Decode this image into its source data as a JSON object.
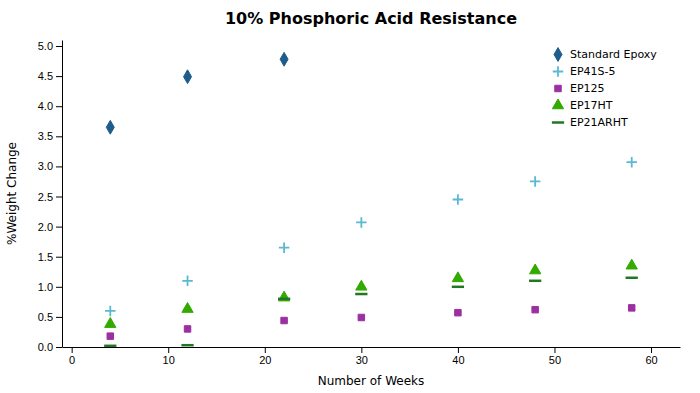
{
  "chart_data": {
    "type": "scatter",
    "title": "10% Phosphoric Acid Resistance",
    "xlabel": "Number of Weeks",
    "ylabel": "%Weight Change",
    "xlim": [
      -1,
      63
    ],
    "ylim": [
      0,
      5.1
    ],
    "xticks": [
      0,
      10,
      20,
      30,
      40,
      50,
      60
    ],
    "yticks": [
      {
        "value": 0,
        "label": "0.0"
      },
      0.5,
      {
        "value": 1,
        "label": "1.0"
      },
      1.5,
      {
        "value": 2,
        "label": "2.0"
      },
      2.5,
      {
        "value": 3,
        "label": "3.0"
      },
      3.5,
      {
        "value": 4,
        "label": "4.0"
      },
      4.5,
      {
        "value": 5,
        "label": "5.0"
      }
    ],
    "grid": false,
    "legend": "upper right",
    "series": [
      {
        "name": "Standard Epoxy",
        "color": "#1e5c8c",
        "marker": "diamond",
        "x": [
          4,
          12,
          22
        ],
        "values": [
          3.65,
          4.49,
          4.78
        ]
      },
      {
        "name": "EP41S-5",
        "color": "#5bb8d4",
        "marker": "plus",
        "x": [
          4,
          12,
          22,
          30,
          40,
          48,
          58
        ],
        "values": [
          0.6,
          1.1,
          1.65,
          2.07,
          2.45,
          2.75,
          3.07
        ]
      },
      {
        "name": "EP125",
        "color": "#9b30a0",
        "marker": "square",
        "x": [
          4,
          12,
          22,
          30,
          40,
          48,
          58
        ],
        "values": [
          0.18,
          0.3,
          0.44,
          0.49,
          0.57,
          0.62,
          0.65
        ]
      },
      {
        "name": "EP17HT",
        "color": "#33aa00",
        "marker": "triangle",
        "x": [
          4,
          12,
          22,
          30,
          40,
          48,
          58
        ],
        "values": [
          0.38,
          0.63,
          0.82,
          1.0,
          1.14,
          1.27,
          1.35
        ]
      },
      {
        "name": "EP21ARHT",
        "color": "#227722",
        "marker": "hline",
        "x": [
          4,
          12,
          22,
          30,
          40,
          48,
          58
        ],
        "values": [
          0.02,
          0.03,
          0.8,
          0.88,
          1.0,
          1.1,
          1.15
        ]
      }
    ]
  }
}
